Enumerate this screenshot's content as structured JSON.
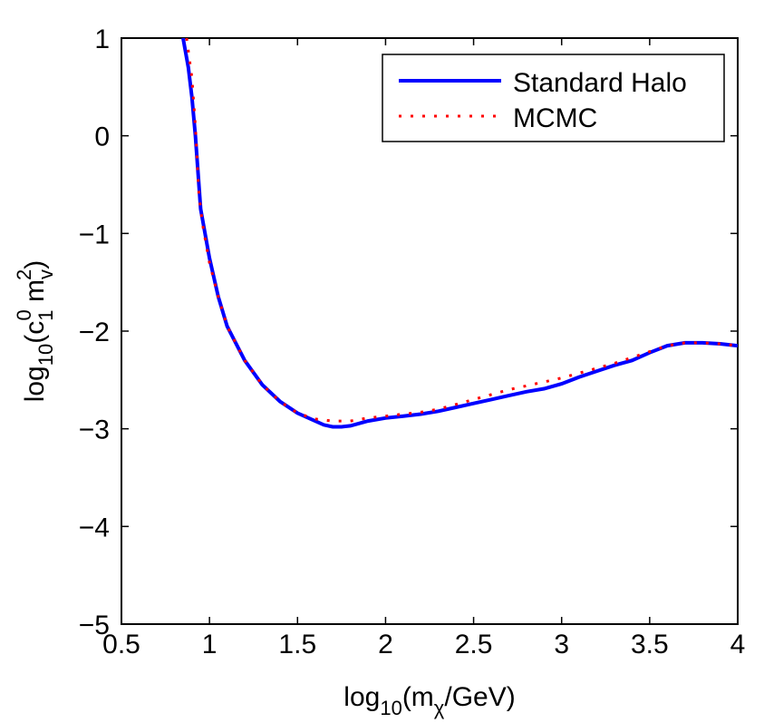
{
  "chart_data": {
    "type": "line",
    "title": "",
    "xlabel": {
      "prefix": "log",
      "prefix_sub": "10",
      "open": "(m",
      "var_sub": "χ",
      "rest": "/GeV)"
    },
    "ylabel": {
      "prefix": "log",
      "prefix_sub": "10",
      "open": "(c",
      "c_sub": "1",
      "c_sup": "0",
      "m": " m",
      "m_sub": "v",
      "m_sup": "2",
      "close": ")"
    },
    "xlim": [
      0.5,
      4
    ],
    "ylim": [
      -5,
      1
    ],
    "xticks": [
      0.5,
      1,
      1.5,
      2,
      2.5,
      3,
      3.5,
      4
    ],
    "yticks": [
      -5,
      -4,
      -3,
      -2,
      -1,
      0,
      1
    ],
    "xtick_labels": [
      "0.5",
      "1",
      "1.5",
      "2",
      "2.5",
      "3",
      "3.5",
      "4"
    ],
    "ytick_labels": [
      "−5",
      "−4",
      "−3",
      "−2",
      "−1",
      "0",
      "1"
    ],
    "grid": false,
    "legend_position": "top-right",
    "series": [
      {
        "name": "Standard Halo",
        "color": "#0000ff",
        "style": "solid",
        "x": [
          0.85,
          0.88,
          0.9,
          0.92,
          0.95,
          1.0,
          1.05,
          1.1,
          1.2,
          1.3,
          1.4,
          1.5,
          1.6,
          1.65,
          1.7,
          1.75,
          1.8,
          1.9,
          2.0,
          2.1,
          2.2,
          2.3,
          2.4,
          2.5,
          2.6,
          2.7,
          2.8,
          2.9,
          3.0,
          3.1,
          3.2,
          3.3,
          3.4,
          3.5,
          3.6,
          3.7,
          3.8,
          3.9,
          4.0
        ],
        "y": [
          1.0,
          0.7,
          0.4,
          0.0,
          -0.75,
          -1.25,
          -1.65,
          -1.95,
          -2.3,
          -2.55,
          -2.72,
          -2.84,
          -2.92,
          -2.96,
          -2.98,
          -2.98,
          -2.97,
          -2.92,
          -2.89,
          -2.87,
          -2.85,
          -2.82,
          -2.78,
          -2.74,
          -2.7,
          -2.66,
          -2.62,
          -2.59,
          -2.54,
          -2.47,
          -2.41,
          -2.35,
          -2.3,
          -2.22,
          -2.15,
          -2.12,
          -2.12,
          -2.13,
          -2.15
        ]
      },
      {
        "name": "MCMC",
        "color": "#ff0000",
        "style": "dotted",
        "x": [
          0.87,
          0.9,
          0.92,
          0.94,
          0.96,
          1.0,
          1.05,
          1.1,
          1.2,
          1.3,
          1.4,
          1.5,
          1.6,
          1.7,
          1.8,
          1.9,
          2.0,
          2.1,
          2.2,
          2.3,
          2.4,
          2.5,
          2.6,
          2.7,
          2.8,
          2.9,
          3.0,
          3.1,
          3.2,
          3.3,
          3.4,
          3.5,
          3.6,
          3.7,
          3.8,
          3.9,
          4.0
        ],
        "y": [
          1.0,
          0.6,
          0.1,
          -0.6,
          -0.9,
          -1.3,
          -1.65,
          -1.95,
          -2.3,
          -2.55,
          -2.72,
          -2.84,
          -2.9,
          -2.92,
          -2.92,
          -2.89,
          -2.87,
          -2.85,
          -2.83,
          -2.8,
          -2.75,
          -2.7,
          -2.65,
          -2.6,
          -2.56,
          -2.52,
          -2.48,
          -2.43,
          -2.38,
          -2.33,
          -2.27,
          -2.21,
          -2.15,
          -2.12,
          -2.12,
          -2.13,
          -2.15
        ]
      }
    ]
  }
}
